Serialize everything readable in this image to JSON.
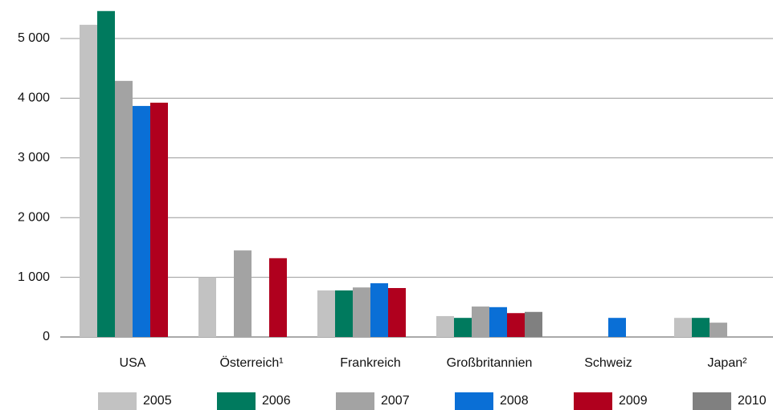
{
  "chart_data": {
    "type": "bar",
    "categories": [
      "USA",
      "Österreich¹",
      "Frankreich",
      "Großbritannien",
      "Schweiz",
      "Japan²"
    ],
    "series": [
      {
        "name": "2005",
        "color": "#c2c2c2",
        "values": [
          5230,
          1000,
          780,
          350,
          null,
          320
        ]
      },
      {
        "name": "2006",
        "color": "#007a5e",
        "values": [
          5460,
          null,
          780,
          320,
          null,
          320
        ]
      },
      {
        "name": "2007",
        "color": "#a3a3a3",
        "values": [
          4290,
          1450,
          830,
          510,
          null,
          240
        ]
      },
      {
        "name": "2008",
        "color": "#0a6fd6",
        "values": [
          3870,
          null,
          900,
          500,
          320,
          null
        ]
      },
      {
        "name": "2009",
        "color": "#b0001e",
        "values": [
          3925,
          1320,
          820,
          400,
          null,
          null
        ]
      },
      {
        "name": "2010",
        "color": "#808080",
        "values": [
          null,
          null,
          null,
          420,
          null,
          null
        ]
      }
    ],
    "ylim": [
      0,
      5500
    ],
    "yticks": [
      0,
      {
        "value": 1000,
        "label": "1 000"
      },
      {
        "value": 2000,
        "label": "2 000"
      },
      {
        "value": 3000,
        "label": "3 000"
      },
      {
        "value": 4000,
        "label": "4 000"
      },
      {
        "value": 5000,
        "label": "5 000"
      }
    ],
    "grid": true,
    "legend": "bottom"
  }
}
